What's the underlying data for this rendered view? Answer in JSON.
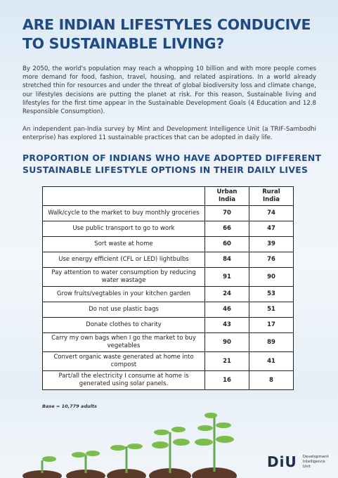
{
  "header": {
    "title": "ARE INDIAN LIFESTYLES CONDUCIVE TO SUSTAINABLE LIVING?"
  },
  "intro": [
    "By 2050, the world's population may reach a whopping 10 billion and with more people comes more demand for food, fashion, travel, housing, and related aspirations. In a world already stretched thin for resources and under the threat of global biodiversity loss and climate change, our lifestyles decisions are putting the planet at risk. For this reason, Sustainable living and lifestyles for the first time appear in the Sustainable Development Goals (4 Education and 12.8 Responsible Consumption).",
    "An independent pan-India survey by Mint and Development Intelligence Unit (a TRIF-Sambodhi enterprise) has explored 11 sustainable practices that can be adopted in daily life."
  ],
  "section_title": "PROPORTION OF INDIANS WHO HAVE ADOPTED DIFFERENT SUSTAINABLE LIFESTYLE OPTIONS IN THEIR DAILY LIVES",
  "table": {
    "columns": [
      "Urban India",
      "Rural India"
    ],
    "rows": [
      [
        "Walk/cycle to the market to buy monthly groceries",
        70,
        74
      ],
      [
        "Use public transport to go to work",
        66,
        47
      ],
      [
        "Sort waste at home",
        60,
        39
      ],
      [
        "Use energy efficient (CFL or LED) lightbulbs",
        84,
        76
      ],
      [
        "Pay attention to water consumption by reducing water wastage",
        91,
        90
      ],
      [
        "Grow fruits/vegtables in your kitchen garden",
        24,
        53
      ],
      [
        "Do not use plastic bags",
        46,
        51
      ],
      [
        "Donate clothes to charity",
        43,
        17
      ],
      [
        "Carry my own bags when I go the market to buy vegetables",
        90,
        89
      ],
      [
        "Convert organic waste generated at home into compost",
        21,
        41
      ],
      [
        "Part/all the electricity I consume at home is generated using solar panels.",
        16,
        8
      ]
    ]
  },
  "footnote": "Base = 10,779 adults",
  "logo": {
    "mark": "DiU",
    "lines": [
      "Development",
      "Intelligence",
      "Unit"
    ]
  }
}
